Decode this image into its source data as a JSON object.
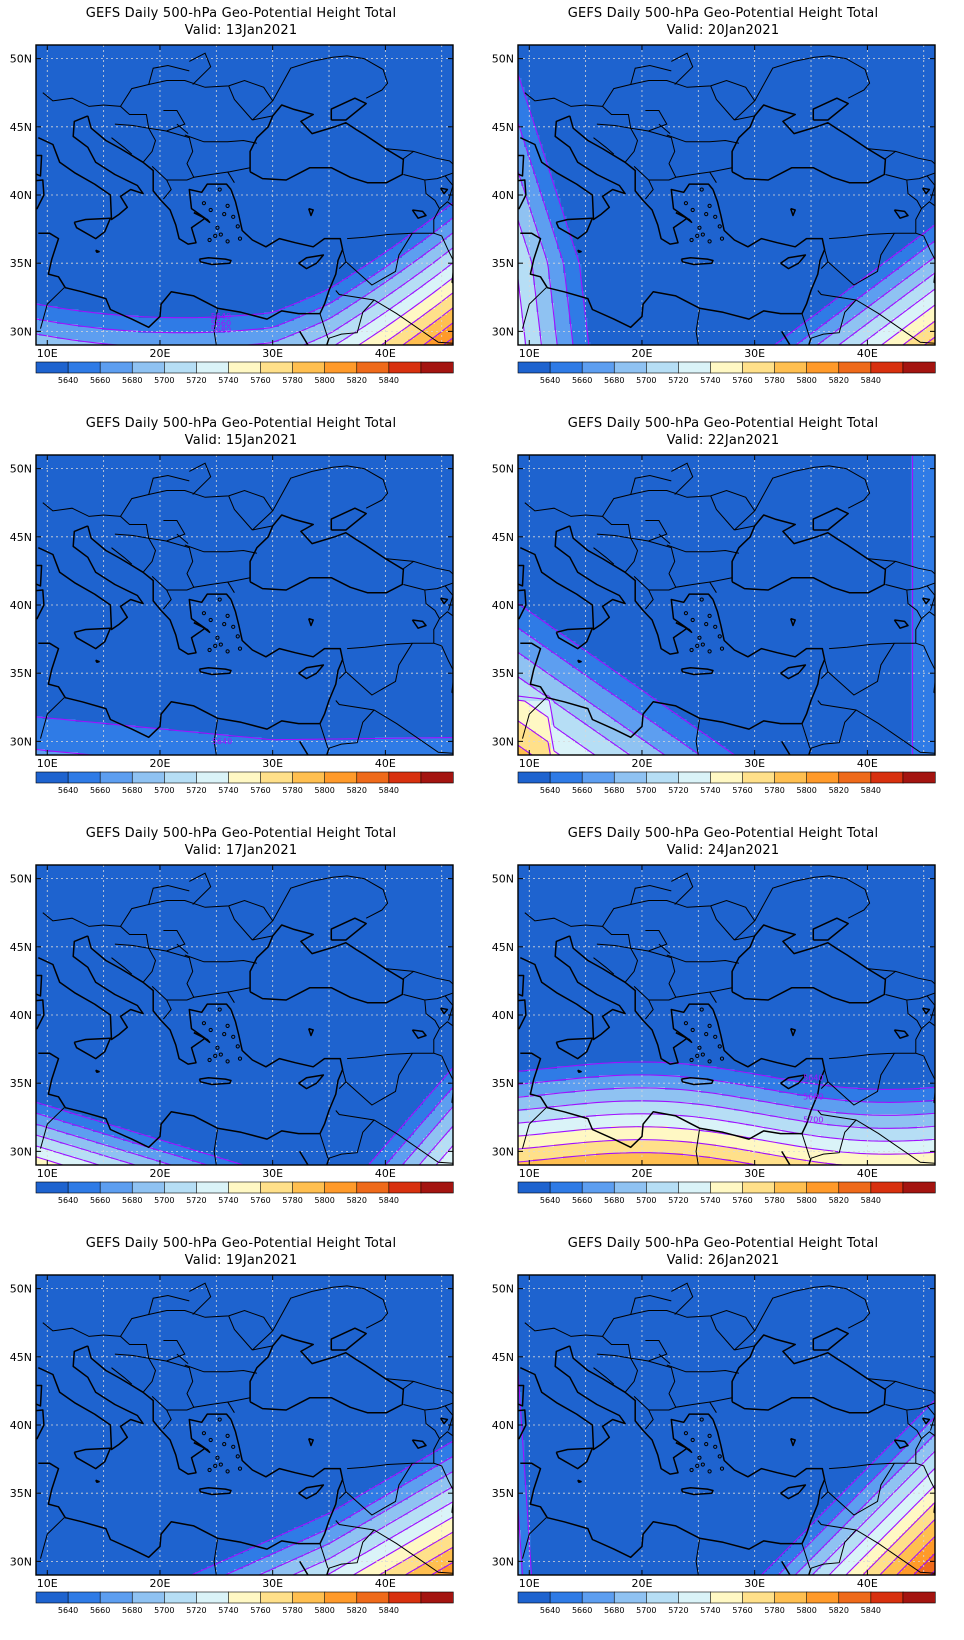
{
  "panels": [
    {
      "title": "GEFS Daily 500-hPa Geo-Potential Height Total",
      "valid": "Valid: 13Jan2021",
      "scenario": "s13",
      "contour_labels": [
        "5640",
        "5660",
        "5680"
      ]
    },
    {
      "title": "GEFS Daily 500-hPa Geo-Potential Height Total",
      "valid": "Valid: 20Jan2021",
      "scenario": "s20",
      "contour_labels": []
    },
    {
      "title": "GEFS Daily 500-hPa Geo-Potential Height Total",
      "valid": "Valid: 15Jan2021",
      "scenario": "s15",
      "contour_labels": [
        "5640"
      ]
    },
    {
      "title": "GEFS Daily 500-hPa Geo-Potential Height Total",
      "valid": "Valid: 22Jan2021",
      "scenario": "s22",
      "contour_labels": []
    },
    {
      "title": "GEFS Daily 500-hPa Geo-Potential Height Total",
      "valid": "Valid: 17Jan2021",
      "scenario": "s17",
      "contour_labels": []
    },
    {
      "title": "GEFS Daily 500-hPa Geo-Potential Height Total",
      "valid": "Valid: 24Jan2021",
      "scenario": "s24",
      "contour_labels": [
        "5640",
        "5680",
        "5700"
      ]
    },
    {
      "title": "GEFS Daily 500-hPa Geo-Potential Height Total",
      "valid": "Valid: 19Jan2021",
      "scenario": "s19",
      "contour_labels": []
    },
    {
      "title": "GEFS Daily 500-hPa Geo-Potential Height Total",
      "valid": "Valid: 26Jan2021",
      "scenario": "s26",
      "contour_labels": []
    }
  ],
  "lon_labels": [
    "10E",
    "20E",
    "30E",
    "40E"
  ],
  "lat_labels": [
    "50N",
    "45N",
    "40N",
    "35N",
    "30N"
  ],
  "colorbar": {
    "labels": [
      "5640",
      "5660",
      "5680",
      "5700",
      "5720",
      "5740",
      "5760",
      "5780",
      "5800",
      "5820",
      "5840"
    ],
    "colors": [
      "#1e63cf",
      "#2f7be6",
      "#5d9ef0",
      "#8fc2f2",
      "#b6def5",
      "#daf3f8",
      "#fff8c4",
      "#ffe08a",
      "#ffbf50",
      "#ff9a2a",
      "#ef6a1a",
      "#d8300e",
      "#a41410"
    ]
  },
  "palette": {
    "contour": "#a010ff",
    "coast": "#000000",
    "grid": "#d8d8d8"
  }
}
